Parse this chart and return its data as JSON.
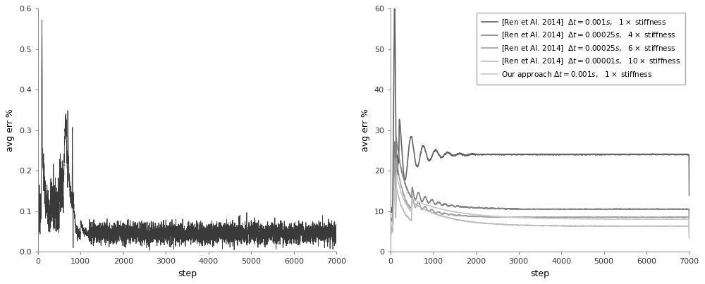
{
  "left_plot": {
    "ylabel": "avg err %",
    "xlabel": "step",
    "xlim": [
      0,
      7000
    ],
    "ylim": [
      0,
      0.6
    ],
    "yticks": [
      0,
      0.1,
      0.2,
      0.3,
      0.4,
      0.5,
      0.6
    ],
    "xticks": [
      0,
      1000,
      2000,
      3000,
      4000,
      5000,
      6000,
      7000
    ],
    "line_color": "#3a3a3a"
  },
  "right_plot": {
    "ylabel": "avg err %",
    "xlabel": "step",
    "xlim": [
      0,
      7000
    ],
    "ylim": [
      0,
      60
    ],
    "yticks": [
      0,
      10,
      20,
      30,
      40,
      50,
      60
    ],
    "xticks": [
      0,
      1000,
      2000,
      3000,
      4000,
      5000,
      6000,
      7000
    ],
    "legend_entries": [
      {
        "label": "[Ren et Al. 2014]  $\\Delta t = 0.001s$,   $1\\times$ stiffness",
        "color": "#636363",
        "settle": 24.0,
        "lw": 1.2
      },
      {
        "label": "[Ren et Al. 2014]  $\\Delta t = 0.00025s$,   $4\\times$ stiffness",
        "color": "#848484",
        "settle": 10.5,
        "lw": 1.2
      },
      {
        "label": "[Ren et Al. 2014]  $\\Delta t = 0.00025s$,   $6\\times$ stiffness",
        "color": "#a0a0a0",
        "settle": 8.5,
        "lw": 1.2
      },
      {
        "label": "[Ren et Al. 2014]  $\\Delta t = 0.00001s$,   $10\\times$ stiffness",
        "color": "#bbbbbb",
        "settle": 6.3,
        "lw": 1.2
      },
      {
        "label": "Our approach $\\Delta t = 0.001s$,   $1\\times$ stiffness",
        "color": "#c8c8c8",
        "settle": 8.0,
        "lw": 1.2
      }
    ]
  },
  "figure_facecolor": "#ffffff"
}
